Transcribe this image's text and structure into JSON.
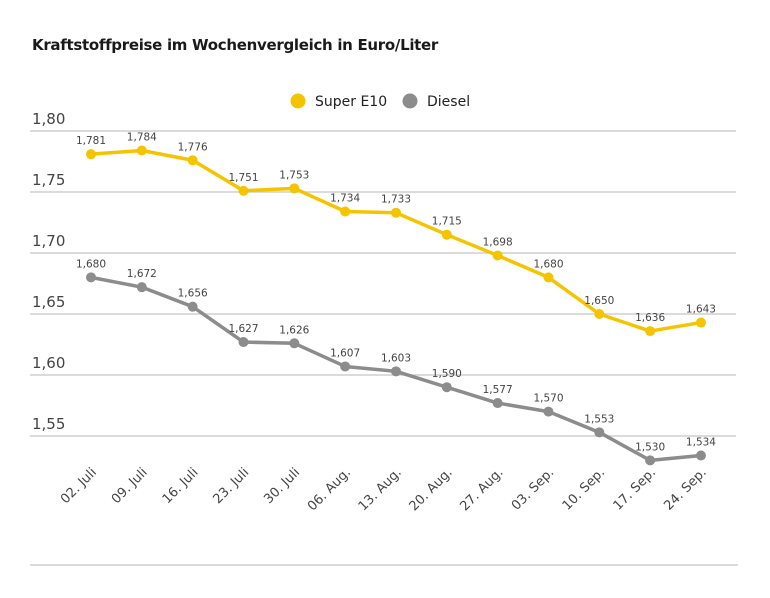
{
  "chart_data": {
    "type": "line",
    "title": "Kraftstoffpreise im Wochenvergleich in Euro/Liter",
    "categories": [
      "02. Juli",
      "09. Juli",
      "16. Juli",
      "23. Juli",
      "30. Juli",
      "06. Aug.",
      "13. Aug.",
      "20. Aug.",
      "27. Aug.",
      "03. Sep.",
      "10. Sep.",
      "17. Sep.",
      "24. Sep."
    ],
    "series": [
      {
        "name": "Super E10",
        "color": "#f5c400",
        "values": [
          1.781,
          1.784,
          1.776,
          1.751,
          1.753,
          1.734,
          1.733,
          1.715,
          1.698,
          1.68,
          1.65,
          1.636,
          1.643
        ],
        "labels": [
          "1,781",
          "1,784",
          "1,776",
          "1,751",
          "1,753",
          "1,734",
          "1,733",
          "1,715",
          "1,698",
          "1,680",
          "1,650",
          "1,636",
          "1,643"
        ]
      },
      {
        "name": "Diesel",
        "color": "#8c8c8c",
        "values": [
          1.68,
          1.672,
          1.656,
          1.627,
          1.626,
          1.607,
          1.603,
          1.59,
          1.577,
          1.57,
          1.553,
          1.53,
          1.534
        ],
        "labels": [
          "1,680",
          "1,672",
          "1,656",
          "1,627",
          "1,626",
          "1,607",
          "1,603",
          "1,590",
          "1,577",
          "1,570",
          "1,553",
          "1,530",
          "1,534"
        ]
      }
    ],
    "yticks": [
      1.8,
      1.75,
      1.7,
      1.65,
      1.6,
      1.55
    ],
    "ytick_labels": [
      "1,80",
      "1,75",
      "1,70",
      "1,65",
      "1,60",
      "1,55"
    ],
    "ylim": [
      1.5,
      1.8
    ],
    "grid": true,
    "legend": "top-center"
  }
}
